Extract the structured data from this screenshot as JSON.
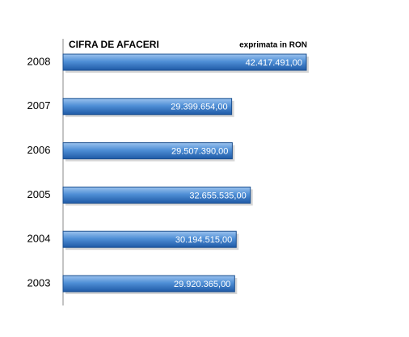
{
  "chart_data": {
    "type": "hbar",
    "title": "CIFRA DE AFACERI",
    "subtitle": "exprimata in RON",
    "categories": [
      "2008",
      "2007",
      "2006",
      "2005",
      "2004",
      "2003"
    ],
    "values": [
      42417491,
      29399654,
      29507390,
      32655535,
      30194515,
      29920365
    ],
    "value_labels": [
      "42.417.491,00",
      "29.399.654,00",
      "29.507.390,00",
      "32.655.535,00",
      "30.194.515,00",
      "29.920.365,00"
    ],
    "color": "#3a78c4"
  }
}
